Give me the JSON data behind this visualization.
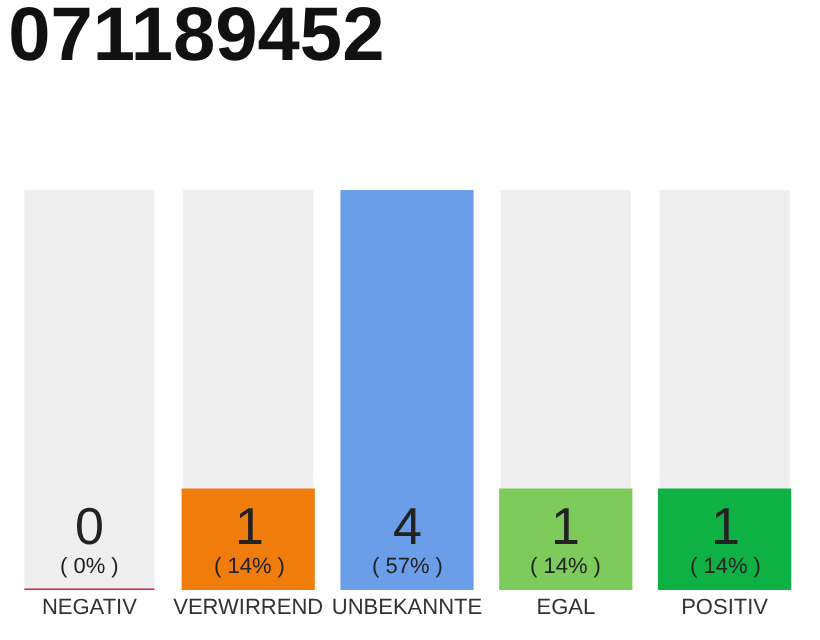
{
  "chart_data": {
    "type": "bar",
    "title": "071189452",
    "categories": [
      "NEGATIV",
      "VERWIRREND",
      "UNBEKANNTE",
      "EGAL",
      "POSITIV"
    ],
    "values": [
      0,
      1,
      4,
      1,
      1
    ],
    "colors": [
      "#e0213f",
      "#f07c0c",
      "#6a9ee8",
      "#7dcb5a",
      "#0db144"
    ],
    "value_labels": [
      "0\n( 0% )",
      "1\n( 14% )",
      "4\n( 57% )",
      "1\n( 14% )",
      "1\n( 14% )"
    ],
    "ylim": [
      0,
      4
    ],
    "relative": false,
    "grid": false,
    "legend": false
  }
}
